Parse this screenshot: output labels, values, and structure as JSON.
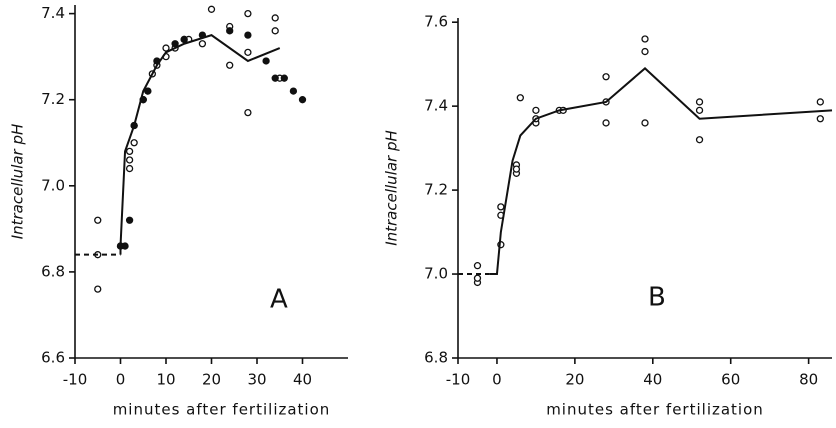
{
  "chart_data": [
    {
      "type": "scatter",
      "ylabel": "Intracellular pH",
      "xlabel": "minutes after fertilization",
      "annotation": "A",
      "xlim": [
        -10,
        50
      ],
      "xticks": [
        -10,
        0,
        10,
        20,
        30,
        40
      ],
      "ylim": [
        6.6,
        7.42
      ],
      "yticks": [
        6.6,
        6.8,
        {
          "value": 7,
          "label": "7.0"
        },
        7.2,
        7.4
      ],
      "series": [
        {
          "color": "#111111",
          "marker": "open",
          "x": [
            -5,
            -5,
            -5,
            0,
            2,
            2,
            2,
            3,
            3,
            5,
            6,
            7,
            8,
            10,
            10,
            12,
            14,
            15,
            18,
            20,
            24,
            24,
            28,
            28,
            28,
            34,
            34,
            35
          ],
          "values": [
            6.92,
            6.76,
            6.84,
            6.86,
            7.08,
            7.04,
            7.06,
            7.1,
            7.14,
            7.2,
            7.22,
            7.26,
            7.28,
            7.3,
            7.32,
            7.32,
            7.34,
            7.34,
            7.33,
            7.41,
            7.37,
            7.28,
            7.4,
            7.31,
            7.17,
            7.39,
            7.36,
            7.25
          ]
        },
        {
          "color": "#111111",
          "marker": "filled",
          "x": [
            0,
            1,
            2,
            3,
            5,
            6,
            8,
            12,
            14,
            18,
            24,
            28,
            32,
            34,
            36,
            38,
            40
          ],
          "values": [
            6.86,
            6.86,
            6.92,
            7.14,
            7.2,
            7.22,
            7.29,
            7.33,
            7.34,
            7.35,
            7.36,
            7.35,
            7.29,
            7.25,
            7.25,
            7.22,
            7.2
          ]
        },
        {
          "color": "#111111",
          "marker": "line",
          "dash": true,
          "x": [
            -10,
            0
          ],
          "values": [
            6.84,
            6.84
          ]
        },
        {
          "color": "#111111",
          "marker": "line",
          "x": [
            0,
            0,
            1,
            3,
            5,
            8,
            10,
            14,
            20,
            28,
            35
          ],
          "values": [
            6.84,
            6.86,
            7.08,
            7.14,
            7.22,
            7.28,
            7.31,
            7.33,
            7.35,
            7.29,
            7.32
          ]
        }
      ]
    },
    {
      "type": "scatter",
      "ylabel": "Intracellular pH",
      "xlabel": "minutes after fertilization",
      "annotation": "B",
      "xlim": [
        -10,
        86
      ],
      "xticks": [
        -10,
        0,
        20,
        40,
        60,
        80
      ],
      "ylim": [
        6.8,
        7.61
      ],
      "yticks": [
        6.8,
        {
          "value": 7,
          "label": "7.0"
        },
        7.2,
        7.4,
        7.6
      ],
      "series": [
        {
          "color": "#111111",
          "marker": "open",
          "x": [
            -5,
            -5,
            -5,
            1,
            1,
            1,
            5,
            5,
            5,
            6,
            10,
            10,
            10,
            16,
            17,
            28,
            28,
            28,
            38,
            38,
            38,
            52,
            52,
            52,
            83,
            83
          ],
          "values": [
            7.02,
            6.98,
            6.99,
            7.07,
            7.14,
            7.16,
            7.26,
            7.24,
            7.25,
            7.42,
            7.39,
            7.36,
            7.37,
            7.39,
            7.39,
            7.47,
            7.36,
            7.41,
            7.56,
            7.53,
            7.36,
            7.41,
            7.39,
            7.32,
            7.41,
            7.37
          ]
        },
        {
          "color": "#111111",
          "marker": "line",
          "dash": true,
          "x": [
            -10,
            -2
          ],
          "values": [
            7,
            7
          ]
        },
        {
          "color": "#111111",
          "marker": "line",
          "x": [
            -2,
            0,
            1,
            4,
            6,
            10,
            16,
            28,
            38,
            52,
            86
          ],
          "values": [
            7,
            7,
            7.1,
            7.27,
            7.33,
            7.37,
            7.39,
            7.41,
            7.49,
            7.37,
            7.39
          ]
        }
      ]
    }
  ]
}
